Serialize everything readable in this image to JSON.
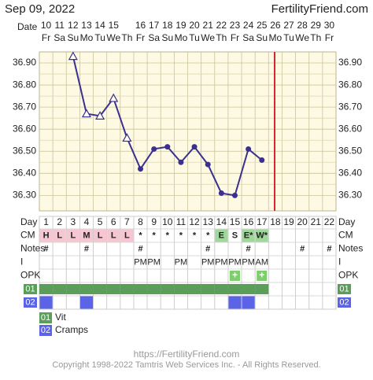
{
  "header": {
    "date": "Sep 09, 2022",
    "site": "FertilityFriend.com",
    "date_label": "Date"
  },
  "chart_data": {
    "type": "line",
    "dates": [
      "10",
      "11",
      "12",
      "13",
      "14",
      "15",
      null,
      "16",
      "17",
      "18",
      "19",
      "20",
      "21",
      "22",
      "23",
      "24",
      "25",
      "26",
      "27",
      "28",
      "29",
      "30"
    ],
    "weekdays": [
      "Fr",
      "Sa",
      "Su",
      "Mo",
      "Tu",
      "We",
      "Th",
      "Fr",
      "Sa",
      "Su",
      "Mo",
      "Tu",
      "We",
      "Th",
      "Fr",
      "Sa",
      "Su",
      "Mo",
      "Tu",
      "We",
      "Th",
      "Fr"
    ],
    "ylim": [
      36.23,
      36.95
    ],
    "yticks": [
      {
        "value": 36.3,
        "label": "36.30"
      },
      {
        "value": 36.4,
        "label": "36.40"
      },
      {
        "value": 36.5,
        "label": "36.50"
      },
      {
        "value": 36.6,
        "label": "36.60"
      },
      {
        "value": 36.7,
        "label": "36.70"
      },
      {
        "value": 36.8,
        "label": "36.80"
      },
      {
        "value": 36.9,
        "label": "36.90"
      }
    ],
    "series": [
      {
        "color": "#3b2f8f",
        "values": [
          null,
          null,
          36.93,
          36.67,
          36.66,
          36.74,
          36.56,
          36.42,
          36.51,
          36.52,
          36.45,
          36.52,
          36.44,
          36.31,
          36.3,
          36.51,
          36.46,
          null,
          null,
          null,
          null,
          null
        ],
        "markers": [
          null,
          null,
          "triangle",
          "triangle",
          "triangle",
          "triangle",
          "triangle",
          "circle",
          "circle",
          "circle",
          "circle",
          "circle",
          "circle",
          "circle",
          "circle",
          "circle",
          "circle",
          null,
          null,
          null,
          null,
          null
        ]
      }
    ],
    "grid": true
  },
  "table": {
    "row_labels": [
      "Day",
      "CM",
      "Notes",
      "I",
      "OPK",
      "01",
      "02"
    ],
    "days": [
      1,
      2,
      3,
      4,
      5,
      6,
      7,
      8,
      9,
      10,
      11,
      12,
      13,
      14,
      15,
      16,
      17,
      18,
      19,
      20,
      21,
      22
    ],
    "cm": [
      "H",
      "L",
      "L",
      "M",
      "L",
      "L",
      "L",
      "*",
      "*",
      "*",
      "*",
      "*",
      "*",
      "E",
      "S",
      "E*",
      "W*",
      null,
      null,
      null,
      null,
      null
    ],
    "cm_colors": [
      "#f6c6d2",
      "#f6c6d2",
      "#f6c6d2",
      "#f6c6d2",
      "#f6c6d2",
      "#f6c6d2",
      "#f6c6d2",
      null,
      null,
      null,
      null,
      null,
      null,
      "#9fd89a",
      null,
      "#9fd89a",
      "#9fd89a",
      null,
      null,
      null,
      null,
      null
    ],
    "notes": [
      "#",
      null,
      null,
      "#",
      null,
      null,
      null,
      "#",
      null,
      null,
      null,
      null,
      "#",
      null,
      null,
      "#",
      null,
      null,
      null,
      "#",
      null,
      "#"
    ],
    "intercourse": [
      null,
      null,
      null,
      null,
      null,
      null,
      null,
      "PM",
      "PM",
      null,
      "PM",
      null,
      "PM",
      "PM",
      "PM",
      "PM",
      "AM",
      null,
      null,
      null,
      null,
      null
    ],
    "opk": [
      null,
      null,
      null,
      null,
      null,
      null,
      null,
      null,
      null,
      null,
      null,
      null,
      null,
      null,
      "+",
      null,
      "+",
      null,
      null,
      null,
      null,
      null
    ],
    "vit": [
      true,
      true,
      true,
      true,
      true,
      true,
      true,
      true,
      true,
      true,
      true,
      true,
      true,
      true,
      true,
      true,
      true,
      false,
      false,
      false,
      false,
      false
    ],
    "cramps": [
      true,
      false,
      false,
      true,
      false,
      false,
      false,
      false,
      false,
      false,
      false,
      false,
      false,
      false,
      true,
      true,
      false,
      false,
      false,
      false,
      false,
      false
    ]
  },
  "legend": [
    {
      "code": "01",
      "label": "Vit",
      "color": "#5a9e5a"
    },
    {
      "code": "02",
      "label": "Cramps",
      "color": "#5b63e6"
    }
  ],
  "footer": {
    "url": "https://FertilityFriend.com",
    "copyright": "Copyright 1998-2022 Tamtris Web Services Inc. - All Rights Reserved."
  }
}
